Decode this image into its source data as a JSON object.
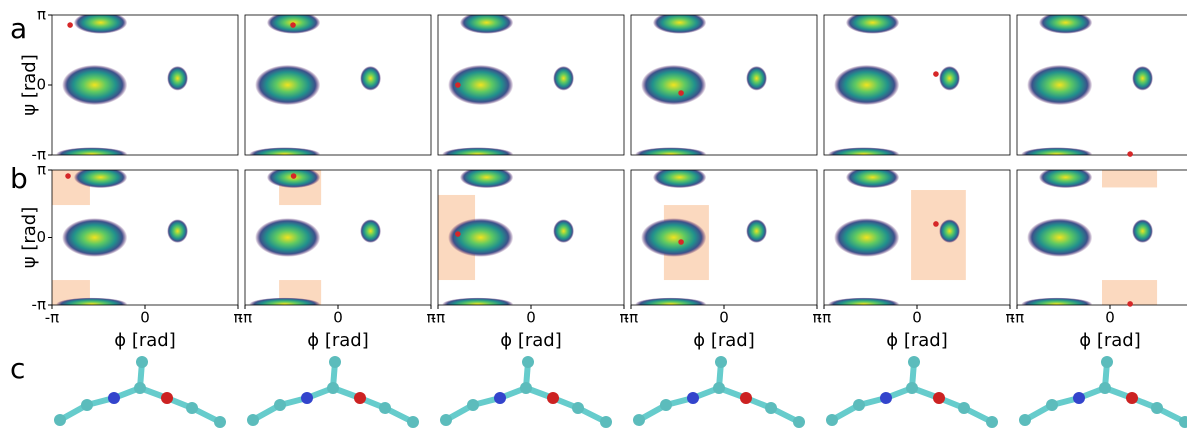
{
  "panel_labels": [
    "a",
    "b",
    "c"
  ],
  "chart_data": [
    {
      "type": "scatter",
      "ylabel": "ψ [rad]",
      "x": [
        -2.53
      ],
      "y": [
        2.69
      ],
      "color": "#d62728",
      "xlim": [
        -3.1416,
        3.1416
      ],
      "ylim": [
        -3.1416,
        3.1416
      ],
      "yticks": [
        {
          "value": 3.1416,
          "label": "π"
        },
        0,
        {
          "value": -3.1416,
          "label": "-π"
        }
      ]
    },
    {
      "type": "scatter",
      "x": [
        -1.52
      ],
      "y": [
        2.69
      ],
      "color": "#d62728",
      "xlim": [
        -3.1416,
        3.1416
      ],
      "ylim": [
        -3.1416,
        3.1416
      ]
    },
    {
      "type": "scatter",
      "x": [
        -2.47
      ],
      "y": [
        0.0
      ],
      "color": "#d62728",
      "xlim": [
        -3.1416,
        3.1416
      ],
      "ylim": [
        -3.1416,
        3.1416
      ]
    },
    {
      "type": "scatter",
      "x": [
        -1.45
      ],
      "y": [
        -0.36
      ],
      "color": "#d62728",
      "xlim": [
        -3.1416,
        3.1416
      ],
      "ylim": [
        -3.1416,
        3.1416
      ]
    },
    {
      "type": "scatter",
      "x": [
        0.64
      ],
      "y": [
        0.49
      ],
      "color": "#d62728",
      "xlim": [
        -3.1416,
        3.1416
      ],
      "ylim": [
        -3.1416,
        3.1416
      ]
    },
    {
      "type": "scatter",
      "x": [
        0.68
      ],
      "y": [
        -3.1
      ],
      "color": "#d62728",
      "xlim": [
        -3.1416,
        3.1416
      ],
      "ylim": [
        -3.1416,
        3.1416
      ]
    },
    {
      "type": "scatter",
      "ylabel": "ψ [rad]",
      "xlabel": "ϕ [rad]",
      "x": [
        -2.6
      ],
      "y": [
        2.86
      ],
      "color": "#d62728",
      "region_color": "#fbd9bf",
      "regions": [
        {
          "xlim": [
            -3.1416,
            -1.86
          ],
          "ylim": [
            1.51,
            3.1416
          ]
        },
        {
          "xlim": [
            -3.1416,
            -1.86
          ],
          "ylim": [
            -3.1416,
            -1.98
          ]
        }
      ],
      "xlim": [
        -3.1416,
        3.1416
      ],
      "ylim": [
        -3.1416,
        3.1416
      ],
      "xticks": [
        {
          "value": -3.1416,
          "label": "-π"
        },
        0,
        {
          "value": 3.1416,
          "label": "π"
        }
      ],
      "yticks": [
        {
          "value": 3.1416,
          "label": "π"
        },
        0,
        {
          "value": -3.1416,
          "label": "-π"
        }
      ]
    },
    {
      "type": "scatter",
      "xlabel": "ϕ [rad]",
      "x": [
        -1.5
      ],
      "y": [
        2.86
      ],
      "color": "#d62728",
      "region_color": "#fbd9bf",
      "regions": [
        {
          "xlim": [
            -1.99,
            -0.57
          ],
          "ylim": [
            1.51,
            3.1416
          ]
        },
        {
          "xlim": [
            -1.99,
            -0.57
          ],
          "ylim": [
            -3.1416,
            -1.98
          ]
        }
      ],
      "xlim": [
        -3.1416,
        3.1416
      ],
      "ylim": [
        -3.1416,
        3.1416
      ],
      "xticks": [
        {
          "value": -3.1416,
          "label": "-π"
        },
        0,
        {
          "value": 3.1416,
          "label": "π"
        }
      ]
    },
    {
      "type": "scatter",
      "xlabel": "ϕ [rad]",
      "x": [
        -2.47
      ],
      "y": [
        0.16
      ],
      "color": "#d62728",
      "region_color": "#fbd9bf",
      "regions": [
        {
          "xlim": [
            -3.1416,
            -1.89
          ],
          "ylim": [
            -1.98,
            1.98
          ]
        }
      ],
      "xlim": [
        -3.1416,
        3.1416
      ],
      "ylim": [
        -3.1416,
        3.1416
      ],
      "xticks": [
        {
          "value": -3.1416,
          "label": "-π"
        },
        0,
        {
          "value": 3.1416,
          "label": "π"
        }
      ]
    },
    {
      "type": "scatter",
      "xlabel": "ϕ [rad]",
      "x": [
        -1.45
      ],
      "y": [
        -0.21
      ],
      "color": "#d62728",
      "region_color": "#fbd9bf",
      "regions": [
        {
          "xlim": [
            -2.03,
            -0.51
          ],
          "ylim": [
            -1.98,
            1.51
          ]
        }
      ],
      "xlim": [
        -3.1416,
        3.1416
      ],
      "ylim": [
        -3.1416,
        3.1416
      ],
      "xticks": [
        {
          "value": -3.1416,
          "label": "-π"
        },
        0,
        {
          "value": 3.1416,
          "label": "π"
        }
      ]
    },
    {
      "type": "scatter",
      "xlabel": "ϕ [rad]",
      "x": [
        0.64
      ],
      "y": [
        0.63
      ],
      "color": "#d62728",
      "region_color": "#fbd9bf",
      "regions": [
        {
          "xlim": [
            -0.2,
            1.65
          ],
          "ylim": [
            -1.98,
            2.21
          ]
        }
      ],
      "xlim": [
        -3.1416,
        3.1416
      ],
      "ylim": [
        -3.1416,
        3.1416
      ],
      "xticks": [
        {
          "value": -3.1416,
          "label": "-π"
        },
        0,
        {
          "value": 3.1416,
          "label": "π"
        }
      ]
    },
    {
      "type": "scatter",
      "xlabel": "ϕ [rad]",
      "x": [
        0.68
      ],
      "y": [
        -3.09
      ],
      "color": "#d62728",
      "region_color": "#fbd9bf",
      "regions": [
        {
          "xlim": [
            -0.27,
            1.59
          ],
          "ylim": [
            2.33,
            3.1416
          ]
        },
        {
          "xlim": [
            -0.27,
            1.59
          ],
          "ylim": [
            -3.1416,
            -1.98
          ]
        }
      ],
      "xlim": [
        -3.1416,
        3.1416
      ],
      "ylim": [
        -3.1416,
        3.1416
      ],
      "xticks": [
        {
          "value": -3.1416,
          "label": "-π"
        },
        0,
        {
          "value": 3.1416,
          "label": "π"
        }
      ]
    }
  ]
}
